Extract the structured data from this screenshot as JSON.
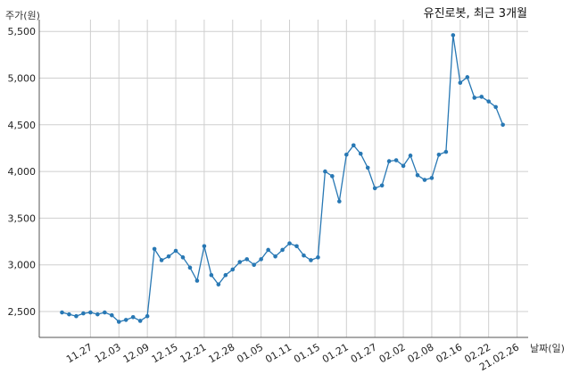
{
  "chart_data": {
    "type": "line",
    "title": "유진로봇, 최근 3개월",
    "ylabel": "주가(원)",
    "xlabel": "날짜(일)",
    "ylim": [
      2200,
      5600
    ],
    "yticks": [
      2500,
      3000,
      3500,
      4000,
      4500,
      5000,
      5500
    ],
    "ytick_labels": [
      "2,500",
      "3,000",
      "3,500",
      "4,000",
      "4,500",
      "5,000",
      "5,500"
    ],
    "xtick_labels": [
      "11.27",
      "12.03",
      "12.09",
      "12.15",
      "12.21",
      "12.28",
      "01.05",
      "01.11",
      "01.15",
      "01.21",
      "01.27",
      "02.02",
      "02.08",
      "02.16",
      "02.22",
      "21.02.26"
    ],
    "xtick_positions": [
      4,
      8,
      12,
      16,
      20,
      24,
      28,
      32,
      36,
      40,
      44,
      48,
      52,
      56,
      60,
      64
    ],
    "grid": true,
    "line_color": "#2878b4",
    "series": [
      {
        "values": [
          2490,
          2470,
          2450,
          2480,
          2490,
          2470,
          2490,
          2460,
          2390,
          2410,
          2440,
          2400,
          2450,
          3170,
          3050,
          3090,
          3150,
          3080,
          2970,
          2830,
          3200,
          2890,
          2790,
          2890,
          2950,
          3030,
          3060,
          3000,
          3060,
          3160,
          3090,
          3160,
          3230,
          3200,
          3100,
          3050,
          3080,
          4000,
          3950,
          3680,
          4180,
          4280,
          4190,
          4040,
          3820,
          3850,
          4110,
          4120,
          4060,
          4170,
          3960,
          3910,
          3930,
          4180,
          4210,
          5460,
          4950,
          5010,
          4790,
          4800,
          4750,
          4690,
          4500
        ]
      }
    ]
  }
}
